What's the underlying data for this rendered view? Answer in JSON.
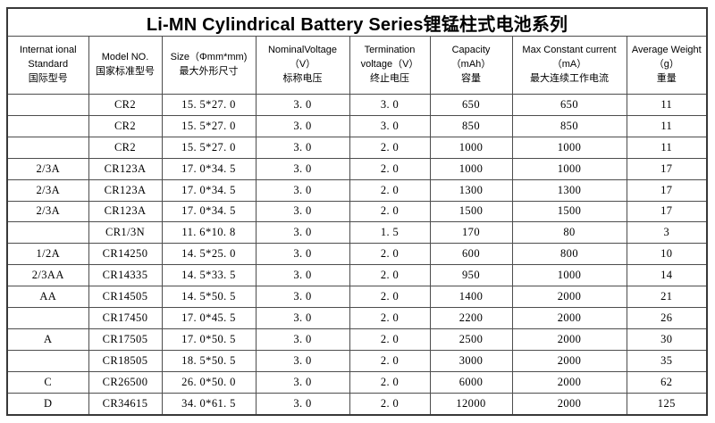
{
  "page": {
    "title": "Li-MN Cylindrical Battery Series锂锰柱式电池系列"
  },
  "colors": {
    "background": "#ffffff",
    "text": "#000000",
    "border_outer": "#383838",
    "border_inner": "#4d4d4d"
  },
  "table": {
    "columns": [
      {
        "lines": [
          "Internat ional",
          "Standard",
          "国际型号"
        ]
      },
      {
        "lines": [
          "Model NO.",
          "国家标准型号"
        ]
      },
      {
        "lines": [
          "Size（Φmm*mm)",
          "最大外形尺寸"
        ]
      },
      {
        "lines": [
          "NominalVoltage",
          "（V）",
          "标称电压"
        ]
      },
      {
        "lines": [
          "Termination",
          "voltage（V）",
          "终止电压"
        ]
      },
      {
        "lines": [
          "Capacity",
          "（mAh）",
          "容量"
        ]
      },
      {
        "lines": [
          "Max Constant current",
          "（mA）",
          "最大连续工作电流"
        ]
      },
      {
        "lines": [
          "Average Weight",
          "（g）",
          "重量"
        ]
      }
    ],
    "rows": [
      [
        "",
        "CR2",
        "15. 5*27. 0",
        "3. 0",
        "3. 0",
        "650",
        "650",
        "11"
      ],
      [
        "",
        "CR2",
        "15. 5*27. 0",
        "3. 0",
        "3. 0",
        "850",
        "850",
        "11"
      ],
      [
        "",
        "CR2",
        "15. 5*27. 0",
        "3. 0",
        "2. 0",
        "1000",
        "1000",
        "11"
      ],
      [
        "2/3A",
        "CR123A",
        "17. 0*34. 5",
        "3. 0",
        "2. 0",
        "1000",
        "1000",
        "17"
      ],
      [
        "2/3A",
        "CR123A",
        "17. 0*34. 5",
        "3. 0",
        "2. 0",
        "1300",
        "1300",
        "17"
      ],
      [
        "2/3A",
        "CR123A",
        "17. 0*34. 5",
        "3. 0",
        "2. 0",
        "1500",
        "1500",
        "17"
      ],
      [
        "",
        "CR1/3N",
        "11. 6*10. 8",
        "3. 0",
        "1. 5",
        "170",
        "80",
        "3"
      ],
      [
        "1/2A",
        "CR14250",
        "14. 5*25. 0",
        "3. 0",
        "2. 0",
        "600",
        "800",
        "10"
      ],
      [
        "2/3AA",
        "CR14335",
        "14. 5*33. 5",
        "3. 0",
        "2. 0",
        "950",
        "1000",
        "14"
      ],
      [
        "AA",
        "CR14505",
        "14. 5*50. 5",
        "3. 0",
        "2. 0",
        "1400",
        "2000",
        "21"
      ],
      [
        "",
        "CR17450",
        "17. 0*45. 5",
        "3. 0",
        "2. 0",
        "2200",
        "2000",
        "26"
      ],
      [
        "A",
        "CR17505",
        "17. 0*50. 5",
        "3. 0",
        "2. 0",
        "2500",
        "2000",
        "30"
      ],
      [
        "",
        "CR18505",
        "18. 5*50. 5",
        "3. 0",
        "2. 0",
        "3000",
        "2000",
        "35"
      ],
      [
        "C",
        "CR26500",
        "26. 0*50. 0",
        "3. 0",
        "2. 0",
        "6000",
        "2000",
        "62"
      ],
      [
        "D",
        "CR34615",
        "34. 0*61. 5",
        "3. 0",
        "2. 0",
        "12000",
        "2000",
        "125"
      ]
    ]
  }
}
